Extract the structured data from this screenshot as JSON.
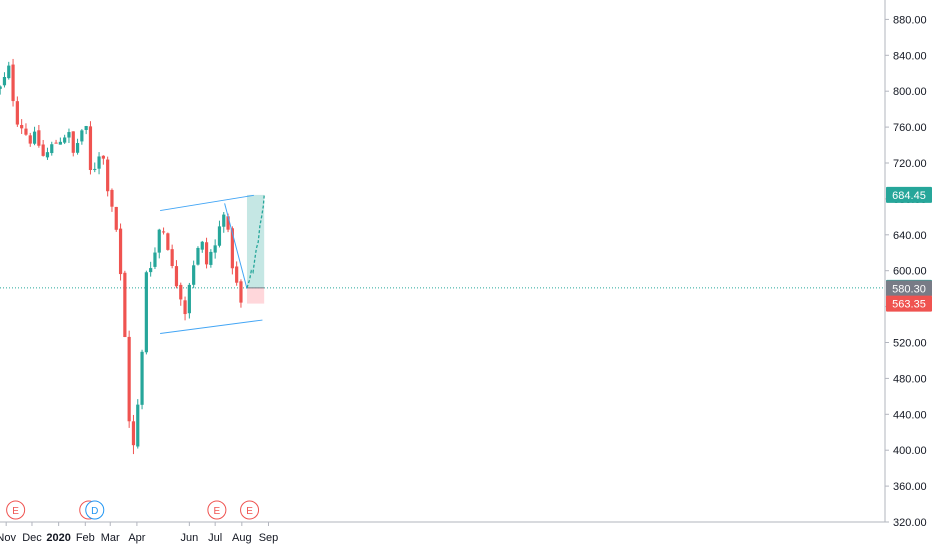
{
  "chart_data": {
    "type": "candlestick",
    "y_axis": {
      "side": "right",
      "ylim": [
        320,
        900
      ],
      "ticks": [
        "320.00",
        "360.00",
        "400.00",
        "440.00",
        "480.00",
        "520.00",
        "560.00",
        "600.00",
        "640.00",
        "680.00",
        "720.00",
        "760.00",
        "800.00",
        "840.00",
        "880.00"
      ]
    },
    "x_axis": {
      "labels": [
        {
          "text": "Nov",
          "date": "2019-11-01"
        },
        {
          "text": "Dec",
          "date": "2019-12-01"
        },
        {
          "text": "2020",
          "date": "2020-01-01",
          "bold": true
        },
        {
          "text": "Feb",
          "date": "2020-02-01"
        },
        {
          "text": "Mar",
          "date": "2020-03-01"
        },
        {
          "text": "Apr",
          "date": "2020-04-01"
        },
        {
          "text": "Jun",
          "date": "2020-06-01"
        },
        {
          "text": "Jul",
          "date": "2020-07-01"
        },
        {
          "text": "Aug",
          "date": "2020-08-01"
        },
        {
          "text": "Sep",
          "date": "2020-09-01"
        }
      ]
    },
    "price_path": [
      [
        "2019-10-20",
        800
      ],
      [
        "2019-10-28",
        805
      ],
      [
        "2019-11-03",
        830
      ],
      [
        "2019-11-06",
        815
      ],
      [
        "2019-11-12",
        770
      ],
      [
        "2019-11-20",
        760
      ],
      [
        "2019-11-28",
        745
      ],
      [
        "2019-12-05",
        750
      ],
      [
        "2019-12-15",
        725
      ],
      [
        "2019-12-25",
        740
      ],
      [
        "2020-01-05",
        748
      ],
      [
        "2020-01-12",
        755
      ],
      [
        "2020-01-18",
        730
      ],
      [
        "2020-01-25",
        748
      ],
      [
        "2020-01-31",
        765
      ],
      [
        "2020-02-03",
        752
      ],
      [
        "2020-02-08",
        700
      ],
      [
        "2020-02-14",
        724
      ],
      [
        "2020-02-20",
        738
      ],
      [
        "2020-02-24",
        710
      ],
      [
        "2020-02-28",
        688
      ],
      [
        "2020-03-04",
        670
      ],
      [
        "2020-03-10",
        635
      ],
      [
        "2020-03-14",
        580
      ],
      [
        "2020-03-18",
        525
      ],
      [
        "2020-03-21",
        480
      ],
      [
        "2020-03-24",
        415
      ],
      [
        "2020-03-27",
        395
      ],
      [
        "2020-03-31",
        425
      ],
      [
        "2020-04-04",
        470
      ],
      [
        "2020-04-08",
        520
      ],
      [
        "2020-04-12",
        600
      ],
      [
        "2020-04-16",
        610
      ],
      [
        "2020-04-20",
        600
      ],
      [
        "2020-04-24",
        640
      ],
      [
        "2020-04-29",
        650
      ],
      [
        "2020-05-05",
        640
      ],
      [
        "2020-05-10",
        610
      ],
      [
        "2020-05-15",
        590
      ],
      [
        "2020-05-20",
        580
      ],
      [
        "2020-05-27",
        555
      ],
      [
        "2020-06-03",
        600
      ],
      [
        "2020-06-10",
        620
      ],
      [
        "2020-06-15",
        635
      ],
      [
        "2020-06-20",
        605
      ],
      [
        "2020-06-26",
        620
      ],
      [
        "2020-07-03",
        630
      ],
      [
        "2020-07-08",
        660
      ],
      [
        "2020-07-11",
        668
      ],
      [
        "2020-07-16",
        640
      ],
      [
        "2020-07-22",
        600
      ],
      [
        "2020-07-27",
        580
      ],
      [
        "2020-08-01",
        558
      ],
      [
        "2020-08-05",
        580
      ]
    ],
    "current_price": 580.85,
    "price_labels": [
      {
        "value": 684.45,
        "text": "684.45",
        "color": "#26a69a"
      },
      {
        "value": 580.85,
        "text": "580.85",
        "color": "#26a69a"
      },
      {
        "value": 580.3,
        "text": "580.30",
        "color": "#787b86"
      },
      {
        "value": 563.35,
        "text": "563.35",
        "color": "#ef5350"
      }
    ],
    "channel": {
      "upper": [
        [
          "2020-04-28",
          667
        ],
        [
          "2020-08-15",
          684
        ]
      ],
      "lower": [
        [
          "2020-04-28",
          530
        ],
        [
          "2020-08-25",
          545
        ]
      ]
    },
    "trendline": [
      [
        "2020-07-12",
        675
      ],
      [
        "2020-08-07",
        580
      ]
    ],
    "position": {
      "start": "2020-08-07",
      "end": "2020-08-27",
      "entry": 580.85,
      "target": 684.45,
      "stop": 563.35
    },
    "projection": [
      [
        "2020-08-07",
        581
      ],
      [
        "2020-08-10",
        590
      ],
      [
        "2020-08-12",
        600
      ],
      [
        "2020-08-14",
        598
      ],
      [
        "2020-08-16",
        612
      ],
      [
        "2020-08-18",
        625
      ],
      [
        "2020-08-20",
        632
      ],
      [
        "2020-08-22",
        650
      ],
      [
        "2020-08-24",
        660
      ],
      [
        "2020-08-26",
        672
      ],
      [
        "2020-08-27",
        684
      ]
    ],
    "events": [
      {
        "letter": "E",
        "date": "2019-11-12",
        "color": "#ef5350"
      },
      {
        "letter": "E",
        "date": "2020-02-05",
        "color": "#ef5350"
      },
      {
        "letter": "D",
        "date": "2020-02-12",
        "color": "#2196f3"
      },
      {
        "letter": "E",
        "date": "2020-07-03",
        "color": "#ef5350"
      },
      {
        "letter": "E",
        "date": "2020-08-10",
        "color": "#ef5350"
      }
    ],
    "colors": {
      "up": "#26a69a",
      "down": "#ef5350",
      "line": "#42a5f5",
      "target_fill": "#b2dfdb",
      "stop_fill": "#ffcdd2",
      "grid": "#e0e3eb"
    }
  }
}
